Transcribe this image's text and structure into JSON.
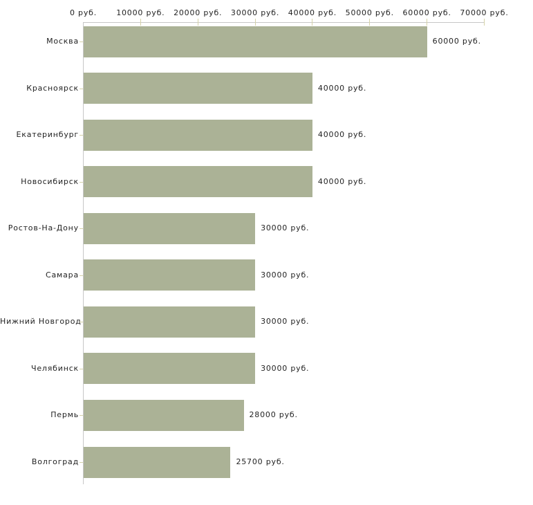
{
  "chart_data": {
    "type": "bar",
    "orientation": "horizontal",
    "title": "",
    "categories": [
      "Москва",
      "Красноярск",
      "Екатеринбург",
      "Новосибирск",
      "Ростов-На-Дону",
      "Самара",
      "Нижний Новгород",
      "Челябинск",
      "Пермь",
      "Волгоград"
    ],
    "values": [
      60000,
      40000,
      40000,
      40000,
      30000,
      30000,
      30000,
      30000,
      28000,
      25700
    ],
    "value_labels": [
      "60000 руб.",
      "40000 руб.",
      "40000 руб.",
      "40000 руб.",
      "30000 руб.",
      "30000 руб.",
      "30000 руб.",
      "30000 руб.",
      "28000 руб.",
      "25700 руб."
    ],
    "x_axis": {
      "position": "top",
      "min": 0,
      "max": 70000,
      "ticks": [
        0,
        10000,
        20000,
        30000,
        40000,
        50000,
        60000,
        70000
      ],
      "tick_labels": [
        "0 руб.",
        "10000 руб.",
        "20000 руб.",
        "30000 руб.",
        "40000 руб.",
        "50000 руб.",
        "60000 руб.",
        "70000 руб."
      ]
    },
    "grid": false,
    "legend": false,
    "colors": {
      "bar": "#abb296",
      "axis_line": "#c6c6c6",
      "tick_mark": "#d5d2a8",
      "text": "#222222",
      "background": "#ffffff"
    }
  }
}
